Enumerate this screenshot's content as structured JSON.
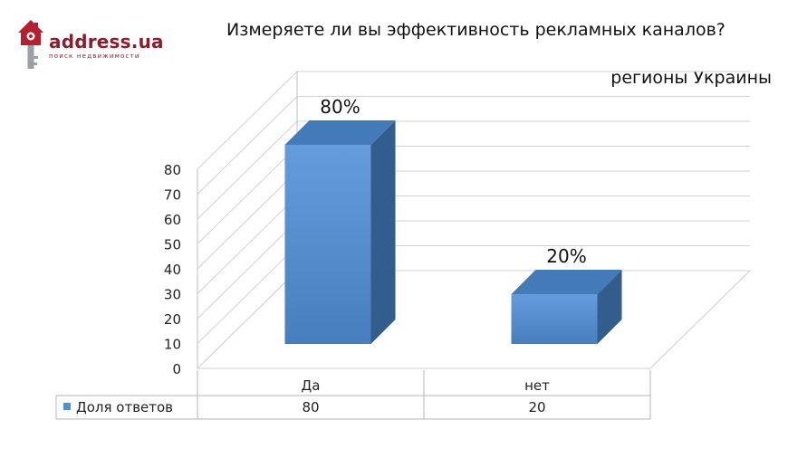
{
  "logo": {
    "name": "address.ua",
    "tagline": "поиск недвижимости",
    "brand_color": "#8b1e2d"
  },
  "header": {
    "title": "Измеряете ли вы эффективность рекламных каналов?",
    "subtitle": "регионы Украины"
  },
  "chart_data": {
    "type": "bar",
    "style": "3d-clustered-column",
    "categories": [
      "Да",
      "нет"
    ],
    "series": [
      {
        "name": "Доля ответов",
        "values": [
          80,
          20
        ],
        "color": "#4f8fd8"
      }
    ],
    "data_labels": [
      "80%",
      "20%"
    ],
    "yticks": [
      "0",
      "10",
      "20",
      "30",
      "40",
      "50",
      "60",
      "70",
      "80"
    ],
    "ylim": [
      0,
      80
    ],
    "grid": true,
    "legend": "data-table-below",
    "data_table": {
      "rows": [
        {
          "label": "Доля ответов",
          "cells": [
            "80",
            "20"
          ]
        }
      ]
    }
  }
}
